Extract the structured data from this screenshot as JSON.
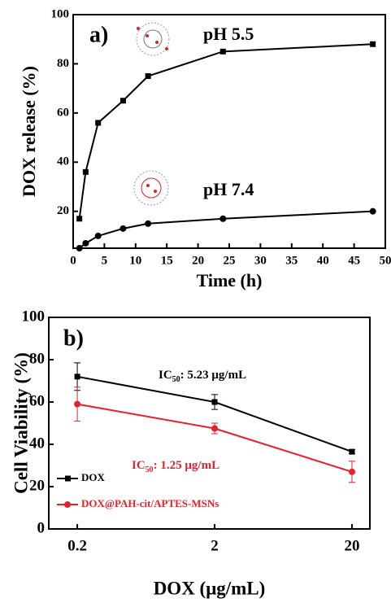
{
  "chart_data": [
    {
      "type": "line",
      "label": "a)",
      "xlabel": "Time (h)",
      "ylabel": "DOX release (%)",
      "xlim": [
        0,
        50
      ],
      "xticks": [
        0,
        5,
        10,
        15,
        20,
        25,
        30,
        35,
        40,
        45,
        50
      ],
      "ylim": [
        5,
        100
      ],
      "yticks": [
        20,
        40,
        60,
        80,
        100
      ],
      "legend": false,
      "series": [
        {
          "name": "pH 5.5",
          "color": "#000000",
          "x": [
            1,
            2,
            4,
            8,
            12,
            24,
            48
          ],
          "values": [
            17,
            36,
            56,
            65,
            75,
            85,
            88
          ]
        },
        {
          "name": "pH 7.4",
          "color": "#000000",
          "x": [
            1,
            2,
            4,
            8,
            12,
            24,
            48
          ],
          "values": [
            5,
            7,
            10,
            13,
            15,
            17,
            20
          ]
        }
      ]
    },
    {
      "type": "line",
      "label": "b)",
      "xlabel": "DOX (μg/mL)",
      "ylabel": "Cell Viability (%)",
      "xscale": "log",
      "xlim": [
        0.124,
        27
      ],
      "xticks": [
        0.2,
        2,
        20
      ],
      "ylim": [
        0,
        100
      ],
      "yticks": [
        0,
        20,
        40,
        60,
        80,
        100
      ],
      "legend": "lower left",
      "series": [
        {
          "name": "DOX",
          "color": "#000000",
          "x": [
            0.2,
            2,
            20
          ],
          "values": [
            72,
            60,
            36.5
          ],
          "errors": [
            6.5,
            3.5,
            1
          ]
        },
        {
          "name": "DOX@PAH-cit/APTES-MSNs",
          "color": "#e8202a",
          "x": [
            0.2,
            2,
            20
          ],
          "values": [
            59,
            47.5,
            27
          ],
          "errors": [
            8,
            2.5,
            5
          ]
        }
      ],
      "annotations": [
        {
          "prefix": "IC",
          "sub": "50",
          "text": ": 5.23 μg/mL",
          "color": "#000000"
        },
        {
          "prefix": "IC",
          "sub": "50",
          "text": ": 1.25 μg/mL",
          "color": "#e8202a"
        }
      ]
    }
  ]
}
